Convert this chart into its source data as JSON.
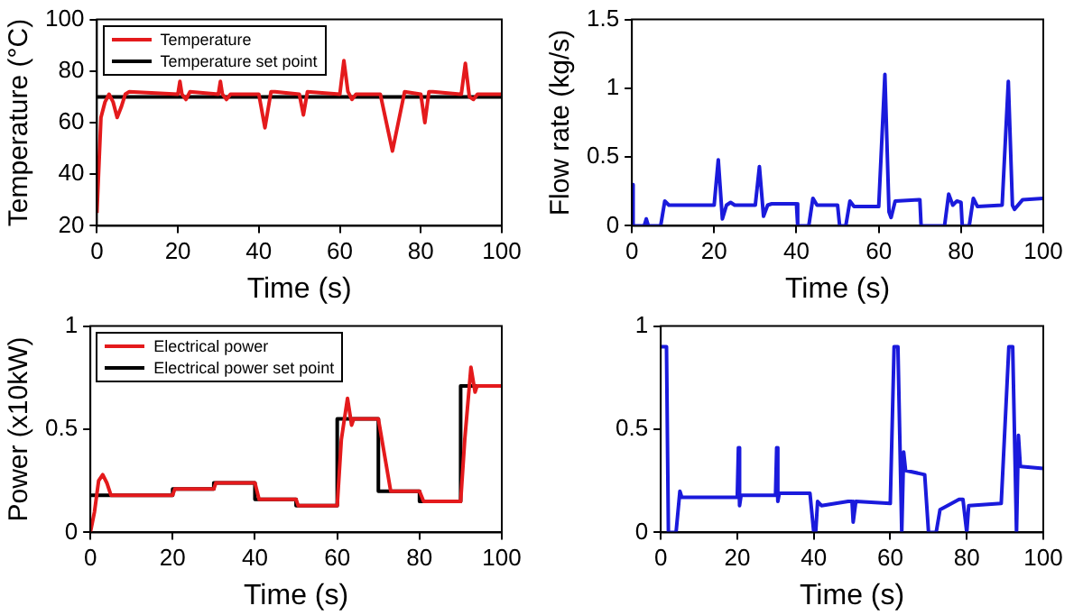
{
  "chart_data": [
    {
      "type": "line",
      "xlabel": "Time (s)",
      "ylabel": "Temperature (°C)",
      "xlim": [
        0,
        100
      ],
      "xticks": [
        0,
        20,
        40,
        60,
        80,
        100
      ],
      "ylim": [
        20,
        100
      ],
      "yticks": [
        20,
        40,
        60,
        80,
        100
      ],
      "grid": false,
      "legend": "top left",
      "marker": "none",
      "series": [
        {
          "name": "Temperature",
          "color": "#e41a1c",
          "x": [
            0,
            1,
            2,
            3,
            4,
            5,
            6,
            7,
            8,
            20,
            20.5,
            21,
            22,
            23,
            30,
            30.5,
            31,
            32,
            33,
            40,
            41.5,
            43,
            44,
            50,
            51,
            52,
            60,
            61,
            62,
            63,
            64,
            70,
            73,
            76,
            80,
            81,
            82,
            83,
            90,
            91,
            92,
            93,
            94,
            100
          ],
          "values": [
            25,
            62,
            68,
            71,
            68,
            62,
            66,
            71,
            72,
            71,
            76,
            71,
            69,
            72,
            71,
            76,
            71,
            69,
            71,
            71,
            58,
            72,
            72,
            71,
            63,
            72,
            71,
            84,
            72,
            69,
            71,
            71,
            49,
            72,
            71,
            60,
            72,
            72,
            71,
            83,
            70,
            69,
            71,
            71
          ]
        },
        {
          "name": "Temperature set point",
          "color": "#000000",
          "x": [
            0,
            100
          ],
          "values": [
            70,
            70
          ]
        }
      ]
    },
    {
      "type": "line",
      "xlabel": "Time (s)",
      "ylabel": "Flow rate (kg/s)",
      "xlim": [
        0,
        100
      ],
      "xticks": [
        0,
        20,
        40,
        60,
        80,
        100
      ],
      "ylim": [
        0,
        1.5
      ],
      "yticks": [
        0,
        0.5,
        1,
        1.5
      ],
      "grid": false,
      "legend": false,
      "marker": "none",
      "series": [
        {
          "color": "#1a1adc",
          "x": [
            0,
            0.3,
            3,
            3.5,
            4,
            7,
            8,
            9,
            20,
            21,
            22,
            23,
            24,
            25,
            30,
            31,
            32,
            33,
            34,
            40,
            40.3,
            43,
            44,
            45,
            50,
            50.5,
            52,
            53,
            54,
            60,
            61.5,
            62.5,
            63,
            64,
            70,
            70.3,
            76,
            77,
            78,
            79,
            80,
            80.3,
            82,
            83,
            84,
            90,
            91.5,
            92.5,
            93,
            95,
            100
          ],
          "values": [
            0.3,
            0,
            0,
            0.05,
            0,
            0,
            0.18,
            0.15,
            0.15,
            0.48,
            0.05,
            0.15,
            0.17,
            0.15,
            0.15,
            0.43,
            0.07,
            0.15,
            0.16,
            0.16,
            0,
            0,
            0.2,
            0.15,
            0.15,
            0,
            0,
            0.18,
            0.14,
            0.14,
            1.1,
            0.1,
            0.06,
            0.18,
            0.19,
            0,
            0,
            0.23,
            0.15,
            0.18,
            0.17,
            0,
            0,
            0.2,
            0.14,
            0.15,
            1.05,
            0.15,
            0.12,
            0.19,
            0.2
          ]
        }
      ]
    },
    {
      "type": "line",
      "xlabel": "Time (s)",
      "ylabel": "Power (x10kW)",
      "xlim": [
        0,
        100
      ],
      "xticks": [
        0,
        20,
        40,
        60,
        80,
        100
      ],
      "ylim": [
        0,
        1
      ],
      "yticks": [
        0,
        0.5,
        1
      ],
      "grid": false,
      "legend": "top left",
      "marker": "none",
      "series": [
        {
          "name": "Electrical power",
          "color": "#e41a1c",
          "x": [
            0,
            1,
            2,
            3,
            4,
            5,
            20,
            20.5,
            30,
            30.5,
            40,
            41,
            50,
            50.5,
            60,
            61,
            62.5,
            63.5,
            64,
            70,
            73,
            80,
            81,
            90,
            91,
            92.5,
            93.5,
            94,
            100
          ],
          "values": [
            0,
            0.1,
            0.25,
            0.28,
            0.24,
            0.18,
            0.18,
            0.21,
            0.21,
            0.24,
            0.24,
            0.16,
            0.16,
            0.13,
            0.13,
            0.45,
            0.65,
            0.52,
            0.55,
            0.55,
            0.2,
            0.2,
            0.15,
            0.15,
            0.45,
            0.8,
            0.68,
            0.71,
            0.71
          ]
        },
        {
          "name": "Electrical power set point",
          "type": "step",
          "color": "#000000",
          "x": [
            0,
            20,
            30,
            40,
            50,
            60,
            70,
            80,
            90,
            100
          ],
          "values": [
            0.18,
            0.21,
            0.24,
            0.16,
            0.13,
            0.55,
            0.2,
            0.15,
            0.71,
            0.71
          ]
        }
      ]
    },
    {
      "type": "line",
      "xlabel": "Time (s)",
      "xlim": [
        0,
        100
      ],
      "xticks": [
        0,
        20,
        40,
        60,
        80,
        100
      ],
      "ylim": [
        0,
        1
      ],
      "yticks": [
        0,
        0.5,
        1
      ],
      "grid": false,
      "legend": false,
      "marker": "none",
      "series": [
        {
          "color": "#1a1adc",
          "x": [
            0,
            1.5,
            2,
            4,
            5,
            5.5,
            20,
            20.3,
            20.6,
            21,
            30,
            30.3,
            30.6,
            31,
            39,
            40,
            40.5,
            41,
            42,
            49,
            50,
            50.3,
            51,
            60,
            61,
            62,
            63,
            63.5,
            64,
            69,
            70,
            72,
            73,
            78,
            79,
            80,
            80.5,
            89,
            91,
            92,
            93,
            93.5,
            94,
            100
          ],
          "values": [
            0.9,
            0.9,
            0,
            0,
            0.2,
            0.17,
            0.17,
            0.41,
            0.13,
            0.18,
            0.18,
            0.41,
            0.15,
            0.19,
            0.19,
            0,
            0,
            0.15,
            0.13,
            0.15,
            0.15,
            0.05,
            0.15,
            0.14,
            0.9,
            0.9,
            0,
            0.39,
            0.3,
            0.28,
            0,
            0,
            0.11,
            0.16,
            0.16,
            0,
            0.13,
            0.14,
            0.9,
            0.9,
            0,
            0.47,
            0.32,
            0.31
          ]
        }
      ]
    }
  ]
}
